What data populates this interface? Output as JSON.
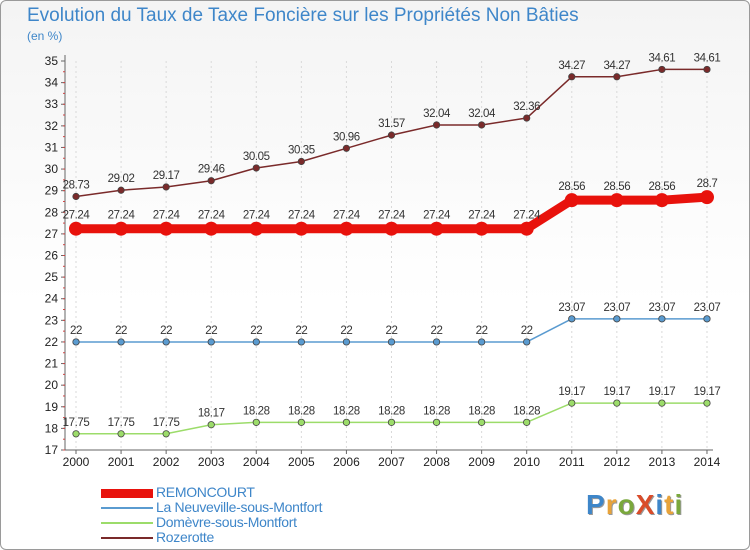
{
  "title": "Evolution du Taux de Taxe Foncière sur les Propriétés Non Bâties",
  "unit_label": "(en %)",
  "logo": {
    "text": "ProXiti",
    "colors": [
      "#3e86c9",
      "#e8a33a",
      "#7aa83c",
      "#d94c2a",
      "#3e86c9",
      "#e8a33a",
      "#7aa83c"
    ]
  },
  "chart_data": {
    "type": "line",
    "title": "Evolution du Taux de Taxe Foncière sur les Propriétés Non Bâties",
    "ylabel": "(en %)",
    "xlabel": "",
    "ylim": [
      17,
      35
    ],
    "yticks": [
      17,
      18,
      19,
      20,
      21,
      22,
      23,
      24,
      25,
      26,
      27,
      28,
      29,
      30,
      31,
      32,
      33,
      34,
      35
    ],
    "categories": [
      "2000",
      "2001",
      "2002",
      "2003",
      "2004",
      "2005",
      "2006",
      "2007",
      "2008",
      "2009",
      "2010",
      "2011",
      "2012",
      "2013",
      "2014"
    ],
    "legend_position": "bottom-left",
    "series": [
      {
        "name": "REMONCOURT",
        "color": "#e8120c",
        "thick": true,
        "values": [
          27.24,
          27.24,
          27.24,
          27.24,
          27.24,
          27.24,
          27.24,
          27.24,
          27.24,
          27.24,
          27.24,
          28.56,
          28.56,
          28.56,
          28.7
        ],
        "labels": [
          "27.24",
          "27.24",
          "27.24",
          "27.24",
          "27.24",
          "27.24",
          "27.24",
          "27.24",
          "27.24",
          "27.24",
          "27.24",
          "28.56",
          "28.56",
          "28.56",
          "28.7"
        ]
      },
      {
        "name": "La Neuveville-sous-Montfort",
        "color": "#5a9bd0",
        "thick": false,
        "values": [
          22,
          22,
          22,
          22,
          22,
          22,
          22,
          22,
          22,
          22,
          22,
          23.07,
          23.07,
          23.07,
          23.07
        ],
        "labels": [
          "22",
          "22",
          "22",
          "22",
          "22",
          "22",
          "22",
          "22",
          "22",
          "22",
          "22",
          "23.07",
          "23.07",
          "23.07",
          "23.07"
        ]
      },
      {
        "name": "Domèvre-sous-Montfort",
        "color": "#9cdc6a",
        "thick": false,
        "values": [
          17.75,
          17.75,
          17.75,
          18.17,
          18.28,
          18.28,
          18.28,
          18.28,
          18.28,
          18.28,
          18.28,
          19.17,
          19.17,
          19.17,
          19.17
        ],
        "labels": [
          "17.75",
          "17.75",
          "17.75",
          "18.17",
          "18.28",
          "18.28",
          "18.28",
          "18.28",
          "18.28",
          "18.28",
          "18.28",
          "19.17",
          "19.17",
          "19.17",
          "19.17"
        ]
      },
      {
        "name": "Rozerotte",
        "color": "#7a2a2a",
        "thick": false,
        "values": [
          28.73,
          29.02,
          29.17,
          29.46,
          30.05,
          30.35,
          30.96,
          31.57,
          32.04,
          32.04,
          32.36,
          34.27,
          34.27,
          34.61,
          34.61
        ],
        "labels": [
          "28.73",
          "29.02",
          "29.17",
          "29.46",
          "30.05",
          "30.35",
          "30.96",
          "31.57",
          "32.04",
          "32.04",
          "32.36",
          "34.27",
          "34.27",
          "34.61",
          "34.61"
        ]
      }
    ]
  }
}
